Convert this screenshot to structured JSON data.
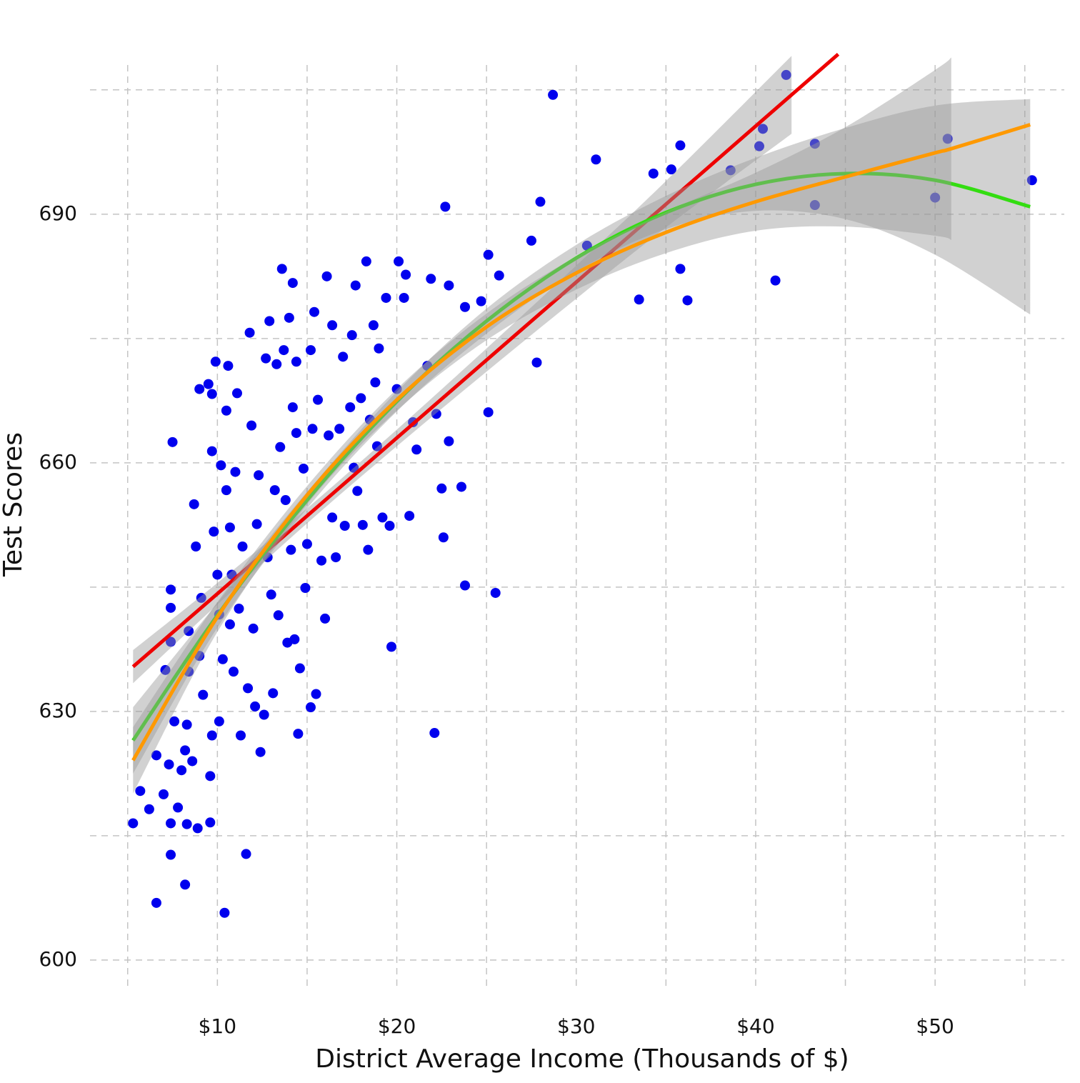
{
  "chart_data": {
    "type": "scatter",
    "xlabel": "District Average Income (Thousands of $)",
    "ylabel": "Test Scores",
    "xlim": [
      2.9,
      57.2
    ],
    "ylim": [
      596.8,
      708
    ],
    "xticks": [
      {
        "value": 10,
        "label": "$10"
      },
      {
        "value": 20,
        "label": "$20"
      },
      {
        "value": 30,
        "label": "$30"
      },
      {
        "value": 40,
        "label": "$40"
      },
      {
        "value": 50,
        "label": "$50"
      }
    ],
    "yticks": [
      600,
      630,
      660,
      690
    ],
    "xticks_minor": [
      5,
      15,
      25,
      35,
      45,
      55
    ],
    "yticks_minor": [
      615,
      645,
      675,
      705
    ],
    "grid": true,
    "band_color": "#999999",
    "points": {
      "color": "#0000ee",
      "x": [
        5.3,
        5.7,
        6.2,
        6.6,
        6.6,
        7.0,
        7.1,
        7.3,
        7.4,
        7.4,
        7.4,
        7.4,
        7.4,
        7.5,
        7.6,
        7.8,
        8.0,
        8.2,
        8.2,
        8.3,
        8.3,
        8.4,
        8.4,
        8.6,
        8.7,
        8.8,
        8.9,
        9.0,
        9.0,
        9.1,
        9.2,
        9.5,
        9.6,
        9.6,
        9.7,
        9.7,
        9.7,
        9.8,
        9.9,
        10.0,
        10.1,
        10.1,
        10.2,
        10.3,
        10.4,
        10.5,
        10.5,
        10.6,
        10.7,
        10.7,
        10.8,
        10.9,
        11.0,
        11.1,
        11.2,
        11.3,
        11.4,
        11.6,
        11.7,
        11.8,
        11.9,
        12.0,
        12.1,
        12.2,
        12.3,
        12.4,
        12.6,
        12.7,
        12.8,
        12.9,
        13.0,
        13.1,
        13.2,
        13.3,
        13.4,
        13.5,
        13.6,
        13.7,
        13.8,
        13.9,
        14.0,
        14.1,
        14.2,
        14.2,
        14.3,
        14.4,
        14.4,
        14.5,
        14.6,
        14.8,
        14.9,
        15.0,
        15.2,
        15.2,
        15.3,
        15.4,
        15.5,
        15.6,
        15.8,
        16.0,
        16.1,
        16.2,
        16.4,
        16.4,
        16.6,
        16.8,
        17.0,
        17.1,
        17.4,
        17.5,
        17.6,
        17.7,
        17.8,
        18.0,
        18.1,
        18.3,
        18.4,
        18.5,
        18.7,
        18.8,
        18.9,
        19.0,
        19.2,
        19.4,
        19.6,
        19.7,
        20.0,
        20.1,
        20.4,
        20.5,
        20.7,
        20.9,
        21.1,
        21.7,
        21.9,
        22.1,
        22.2,
        22.5,
        22.6,
        22.7,
        22.9,
        22.9,
        23.6,
        23.8,
        23.8,
        24.7,
        25.1,
        25.1,
        25.5,
        25.7,
        27.5,
        27.8,
        28.0,
        28.7,
        30.6,
        31.1,
        33.5,
        34.3,
        35.3,
        35.8,
        35.8,
        36.2,
        38.6,
        40.2,
        40.4,
        41.1,
        41.7,
        43.3,
        43.3,
        50.0,
        50.7,
        55.4
      ],
      "y": [
        616.5,
        620.4,
        618.2,
        606.9,
        624.7,
        620.0,
        635.0,
        623.6,
        612.7,
        616.5,
        644.7,
        642.5,
        638.4,
        662.5,
        628.8,
        618.4,
        622.9,
        625.3,
        609.1,
        628.4,
        616.4,
        634.8,
        639.7,
        624.0,
        655.0,
        649.9,
        615.9,
        668.9,
        636.7,
        643.7,
        632.0,
        669.5,
        616.6,
        622.2,
        661.4,
        668.3,
        627.1,
        651.7,
        672.2,
        646.5,
        628.8,
        641.7,
        659.7,
        636.3,
        605.7,
        666.3,
        656.7,
        671.7,
        652.2,
        640.5,
        646.5,
        634.8,
        658.9,
        668.4,
        642.4,
        627.1,
        649.9,
        612.8,
        632.8,
        675.7,
        664.5,
        640.0,
        630.6,
        652.6,
        658.5,
        625.1,
        629.6,
        672.6,
        648.6,
        677.1,
        644.1,
        632.2,
        656.7,
        671.9,
        641.6,
        661.9,
        683.4,
        673.6,
        655.5,
        638.3,
        677.5,
        649.5,
        681.7,
        666.7,
        638.7,
        672.2,
        663.6,
        627.3,
        635.2,
        659.3,
        644.9,
        650.2,
        673.6,
        630.5,
        664.1,
        678.2,
        632.1,
        667.6,
        648.2,
        641.2,
        682.5,
        663.3,
        676.6,
        653.4,
        648.6,
        664.1,
        672.8,
        652.4,
        666.7,
        675.4,
        659.4,
        681.4,
        656.6,
        667.8,
        652.5,
        684.3,
        649.5,
        665.2,
        676.6,
        669.7,
        662.0,
        673.8,
        653.4,
        679.9,
        652.4,
        637.8,
        668.9,
        684.3,
        679.9,
        682.7,
        653.6,
        664.9,
        661.6,
        671.7,
        682.2,
        627.4,
        665.9,
        656.9,
        651.0,
        690.9,
        681.4,
        662.6,
        657.1,
        645.2,
        678.8,
        679.5,
        666.1,
        685.1,
        644.3,
        682.6,
        686.8,
        672.1,
        691.5,
        704.4,
        686.2,
        696.6,
        679.7,
        694.9,
        695.4,
        698.3,
        683.4,
        679.6,
        695.3,
        698.2,
        700.3,
        682.0,
        706.8,
        698.5,
        691.1,
        692.0,
        699.1,
        694.1
      ]
    },
    "fits": [
      {
        "color": "#ee0000",
        "x": [
          5.3,
          10,
          15,
          20,
          25,
          30,
          35,
          42,
          44.6
        ],
        "values": [
          635.4,
          644.2,
          653.6,
          663.0,
          672.4,
          681.8,
          691.2,
          704.4,
          709.3
        ],
        "lower": [
          633.4,
          642.9,
          652.7,
          662.0,
          671.0,
          679.8,
          688.4,
          699.7,
          null
        ],
        "upper": [
          637.4,
          645.5,
          654.5,
          664.0,
          673.8,
          683.8,
          694.0,
          709.1,
          null
        ]
      },
      {
        "color": "#33dd11",
        "x": [
          5.3,
          10,
          15,
          20,
          25,
          30,
          35,
          40,
          45,
          50,
          55.3
        ],
        "values": [
          626.5,
          641.6,
          655.5,
          667.4,
          677.1,
          684.7,
          690.2,
          693.6,
          694.9,
          694.1,
          690.9
        ],
        "lower": [
          622.5,
          640.1,
          654.5,
          666.2,
          675.6,
          683.1,
          688.2,
          690.4,
          689.4,
          685.1,
          677.9
        ],
        "upper": [
          630.5,
          643.1,
          656.5,
          668.6,
          678.6,
          686.3,
          692.2,
          696.8,
          700.4,
          703.1,
          703.9
        ]
      },
      {
        "color": "#ff9900",
        "x": [
          5.3,
          10,
          15,
          20,
          25,
          30,
          35,
          40,
          45,
          50,
          50.9,
          55.3
        ],
        "values": [
          624.1,
          641.4,
          656.1,
          667.6,
          676.4,
          682.9,
          687.8,
          691.5,
          694.5,
          697.4,
          697.9,
          700.8
        ],
        "lower": [
          620.1,
          639.6,
          655.0,
          666.3,
          674.8,
          680.9,
          685.3,
          688.0,
          688.5,
          687.4,
          686.9,
          null
        ],
        "upper": [
          628.1,
          643.2,
          657.2,
          668.9,
          678.0,
          684.9,
          690.3,
          695.0,
          700.5,
          707.4,
          708.9,
          null
        ]
      }
    ]
  }
}
